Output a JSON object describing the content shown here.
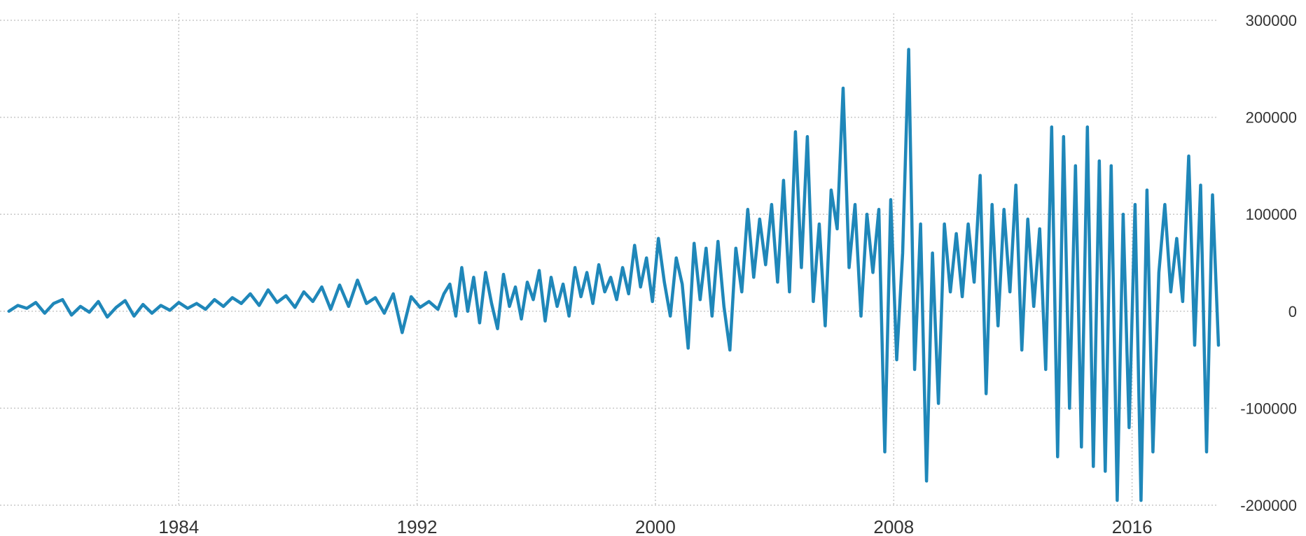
{
  "chart_data": {
    "type": "line",
    "title": "",
    "xlabel": "",
    "ylabel": "",
    "xlim": [
      1978.0,
      2018.9
    ],
    "ylim": [
      -200000,
      300000
    ],
    "x_ticks": [
      {
        "value": 1984,
        "label": "1984"
      },
      {
        "value": 1992,
        "label": "1992"
      },
      {
        "value": 2000,
        "label": "2000"
      },
      {
        "value": 2008,
        "label": "2008"
      },
      {
        "value": 2016,
        "label": "2016"
      }
    ],
    "y_ticks": [
      {
        "value": 300000,
        "label": "300000"
      },
      {
        "value": 200000,
        "label": "200000"
      },
      {
        "value": 100000,
        "label": "100000"
      },
      {
        "value": 0,
        "label": "0"
      },
      {
        "value": -100000,
        "label": "-100000"
      },
      {
        "value": -200000,
        "label": "-200000"
      }
    ],
    "y_axis_position": "right",
    "grid": true,
    "legend": "none",
    "colors": {
      "line": "#1f87b9",
      "grid": "#c8c8c8",
      "text": "#333333"
    },
    "series": [
      {
        "points": [
          [
            1978.3,
            0
          ],
          [
            1978.6,
            6000
          ],
          [
            1978.9,
            3000
          ],
          [
            1979.2,
            9000
          ],
          [
            1979.5,
            -2000
          ],
          [
            1979.8,
            8000
          ],
          [
            1980.1,
            12000
          ],
          [
            1980.4,
            -4000
          ],
          [
            1980.7,
            5000
          ],
          [
            1981.0,
            -1000
          ],
          [
            1981.3,
            10000
          ],
          [
            1981.6,
            -6000
          ],
          [
            1981.9,
            4000
          ],
          [
            1982.2,
            11000
          ],
          [
            1982.5,
            -5000
          ],
          [
            1982.8,
            7000
          ],
          [
            1983.1,
            -2000
          ],
          [
            1983.4,
            6000
          ],
          [
            1983.7,
            1000
          ],
          [
            1984.0,
            9000
          ],
          [
            1984.3,
            3000
          ],
          [
            1984.6,
            8000
          ],
          [
            1984.9,
            2000
          ],
          [
            1985.2,
            12000
          ],
          [
            1985.5,
            5000
          ],
          [
            1985.8,
            14000
          ],
          [
            1986.1,
            8000
          ],
          [
            1986.4,
            18000
          ],
          [
            1986.7,
            6000
          ],
          [
            1987.0,
            22000
          ],
          [
            1987.3,
            9000
          ],
          [
            1987.6,
            16000
          ],
          [
            1987.9,
            4000
          ],
          [
            1988.2,
            20000
          ],
          [
            1988.5,
            10000
          ],
          [
            1988.8,
            25000
          ],
          [
            1989.1,
            2000
          ],
          [
            1989.4,
            27000
          ],
          [
            1989.7,
            5000
          ],
          [
            1990.0,
            32000
          ],
          [
            1990.3,
            8000
          ],
          [
            1990.6,
            14000
          ],
          [
            1990.9,
            -2000
          ],
          [
            1991.2,
            18000
          ],
          [
            1991.5,
            -22000
          ],
          [
            1991.8,
            15000
          ],
          [
            1992.1,
            4000
          ],
          [
            1992.4,
            10000
          ],
          [
            1992.7,
            2000
          ],
          [
            1992.9,
            18000
          ],
          [
            1993.1,
            28000
          ],
          [
            1993.3,
            -5000
          ],
          [
            1993.5,
            45000
          ],
          [
            1993.7,
            0
          ],
          [
            1993.9,
            35000
          ],
          [
            1994.1,
            -12000
          ],
          [
            1994.3,
            40000
          ],
          [
            1994.5,
            8000
          ],
          [
            1994.7,
            -18000
          ],
          [
            1994.9,
            38000
          ],
          [
            1995.1,
            5000
          ],
          [
            1995.3,
            25000
          ],
          [
            1995.5,
            -8000
          ],
          [
            1995.7,
            30000
          ],
          [
            1995.9,
            12000
          ],
          [
            1996.1,
            42000
          ],
          [
            1996.3,
            -10000
          ],
          [
            1996.5,
            35000
          ],
          [
            1996.7,
            5000
          ],
          [
            1996.9,
            28000
          ],
          [
            1997.1,
            -5000
          ],
          [
            1997.3,
            45000
          ],
          [
            1997.5,
            15000
          ],
          [
            1997.7,
            40000
          ],
          [
            1997.9,
            8000
          ],
          [
            1998.1,
            48000
          ],
          [
            1998.3,
            20000
          ],
          [
            1998.5,
            35000
          ],
          [
            1998.7,
            12000
          ],
          [
            1998.9,
            45000
          ],
          [
            1999.1,
            18000
          ],
          [
            1999.3,
            68000
          ],
          [
            1999.5,
            25000
          ],
          [
            1999.7,
            55000
          ],
          [
            1999.9,
            10000
          ],
          [
            2000.1,
            75000
          ],
          [
            2000.3,
            30000
          ],
          [
            2000.5,
            -5000
          ],
          [
            2000.7,
            55000
          ],
          [
            2000.9,
            28000
          ],
          [
            2001.1,
            -38000
          ],
          [
            2001.3,
            70000
          ],
          [
            2001.5,
            12000
          ],
          [
            2001.7,
            65000
          ],
          [
            2001.9,
            -5000
          ],
          [
            2002.1,
            72000
          ],
          [
            2002.3,
            5000
          ],
          [
            2002.5,
            -40000
          ],
          [
            2002.7,
            65000
          ],
          [
            2002.9,
            20000
          ],
          [
            2003.1,
            105000
          ],
          [
            2003.3,
            35000
          ],
          [
            2003.5,
            95000
          ],
          [
            2003.7,
            48000
          ],
          [
            2003.9,
            110000
          ],
          [
            2004.1,
            30000
          ],
          [
            2004.3,
            135000
          ],
          [
            2004.5,
            20000
          ],
          [
            2004.7,
            185000
          ],
          [
            2004.9,
            45000
          ],
          [
            2005.1,
            180000
          ],
          [
            2005.3,
            10000
          ],
          [
            2005.5,
            90000
          ],
          [
            2005.7,
            -15000
          ],
          [
            2005.9,
            125000
          ],
          [
            2006.1,
            85000
          ],
          [
            2006.3,
            230000
          ],
          [
            2006.5,
            45000
          ],
          [
            2006.7,
            110000
          ],
          [
            2006.9,
            -5000
          ],
          [
            2007.1,
            100000
          ],
          [
            2007.3,
            40000
          ],
          [
            2007.5,
            105000
          ],
          [
            2007.7,
            -145000
          ],
          [
            2007.9,
            115000
          ],
          [
            2008.1,
            -50000
          ],
          [
            2008.3,
            60000
          ],
          [
            2008.5,
            270000
          ],
          [
            2008.7,
            -60000
          ],
          [
            2008.9,
            90000
          ],
          [
            2009.1,
            -175000
          ],
          [
            2009.3,
            60000
          ],
          [
            2009.5,
            -95000
          ],
          [
            2009.7,
            90000
          ],
          [
            2009.9,
            20000
          ],
          [
            2010.1,
            80000
          ],
          [
            2010.3,
            15000
          ],
          [
            2010.5,
            90000
          ],
          [
            2010.7,
            30000
          ],
          [
            2010.9,
            140000
          ],
          [
            2011.1,
            -85000
          ],
          [
            2011.3,
            110000
          ],
          [
            2011.5,
            -15000
          ],
          [
            2011.7,
            105000
          ],
          [
            2011.9,
            20000
          ],
          [
            2012.1,
            130000
          ],
          [
            2012.3,
            -40000
          ],
          [
            2012.5,
            95000
          ],
          [
            2012.7,
            5000
          ],
          [
            2012.9,
            85000
          ],
          [
            2013.1,
            -60000
          ],
          [
            2013.3,
            190000
          ],
          [
            2013.5,
            -150000
          ],
          [
            2013.7,
            180000
          ],
          [
            2013.9,
            -100000
          ],
          [
            2014.1,
            150000
          ],
          [
            2014.3,
            -140000
          ],
          [
            2014.5,
            190000
          ],
          [
            2014.7,
            -160000
          ],
          [
            2014.9,
            155000
          ],
          [
            2015.1,
            -165000
          ],
          [
            2015.3,
            150000
          ],
          [
            2015.5,
            -195000
          ],
          [
            2015.7,
            100000
          ],
          [
            2015.9,
            -120000
          ],
          [
            2016.1,
            110000
          ],
          [
            2016.3,
            -195000
          ],
          [
            2016.5,
            125000
          ],
          [
            2016.7,
            -145000
          ],
          [
            2016.9,
            40000
          ],
          [
            2017.1,
            110000
          ],
          [
            2017.3,
            20000
          ],
          [
            2017.5,
            75000
          ],
          [
            2017.7,
            10000
          ],
          [
            2017.9,
            160000
          ],
          [
            2018.1,
            -35000
          ],
          [
            2018.3,
            130000
          ],
          [
            2018.5,
            -145000
          ],
          [
            2018.7,
            120000
          ],
          [
            2018.9,
            -35000
          ]
        ]
      }
    ]
  }
}
